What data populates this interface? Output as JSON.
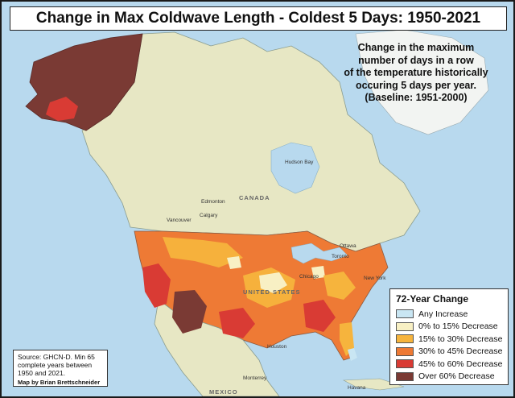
{
  "title": "Change in Max Coldwave Length - Coldest 5 Days: 1950-2021",
  "subtitle_lines": [
    "Change in the maximum",
    "number of days in a row",
    "of the temperature historically",
    "occuring 5 days per year.",
    "(Baseline: 1951-2000)"
  ],
  "source": {
    "line1": "Source: GHCN-D. Min 65",
    "line2": "complete years between",
    "line3": "1950 and 2021.",
    "credit": "Map by Brian Brettschneider"
  },
  "legend": {
    "title": "72-Year Change",
    "items": [
      {
        "label": "Any Increase",
        "color": "#c9e6f3"
      },
      {
        "label": "0% to 15% Decrease",
        "color": "#f8f0c4"
      },
      {
        "label": "15% to 30% Decrease",
        "color": "#f6b43d"
      },
      {
        "label": "30% to 45% Decrease",
        "color": "#ee7a35"
      },
      {
        "label": "45% to 60% Decrease",
        "color": "#d93b34"
      },
      {
        "label": "Over 60% Decrease",
        "color": "#7a3a34"
      }
    ]
  },
  "places": {
    "canada": "CANADA",
    "united_states": "UNITED STATES",
    "mexico": "MEXICO",
    "hudson_bay": "Hudson Bay",
    "edmonton": "Edmonton",
    "calgary": "Calgary",
    "vancouver": "Vancouver",
    "ottawa": "Ottawa",
    "toronto": "Toronto",
    "chicago": "Chicago",
    "new_york": "New York",
    "houston": "Houston",
    "monterrey": "Monterrey",
    "havana": "Havana"
  },
  "colors": {
    "ocean": "#b8d9ee",
    "land": "#e7e7c4",
    "greenland": "#f2f4f2"
  }
}
